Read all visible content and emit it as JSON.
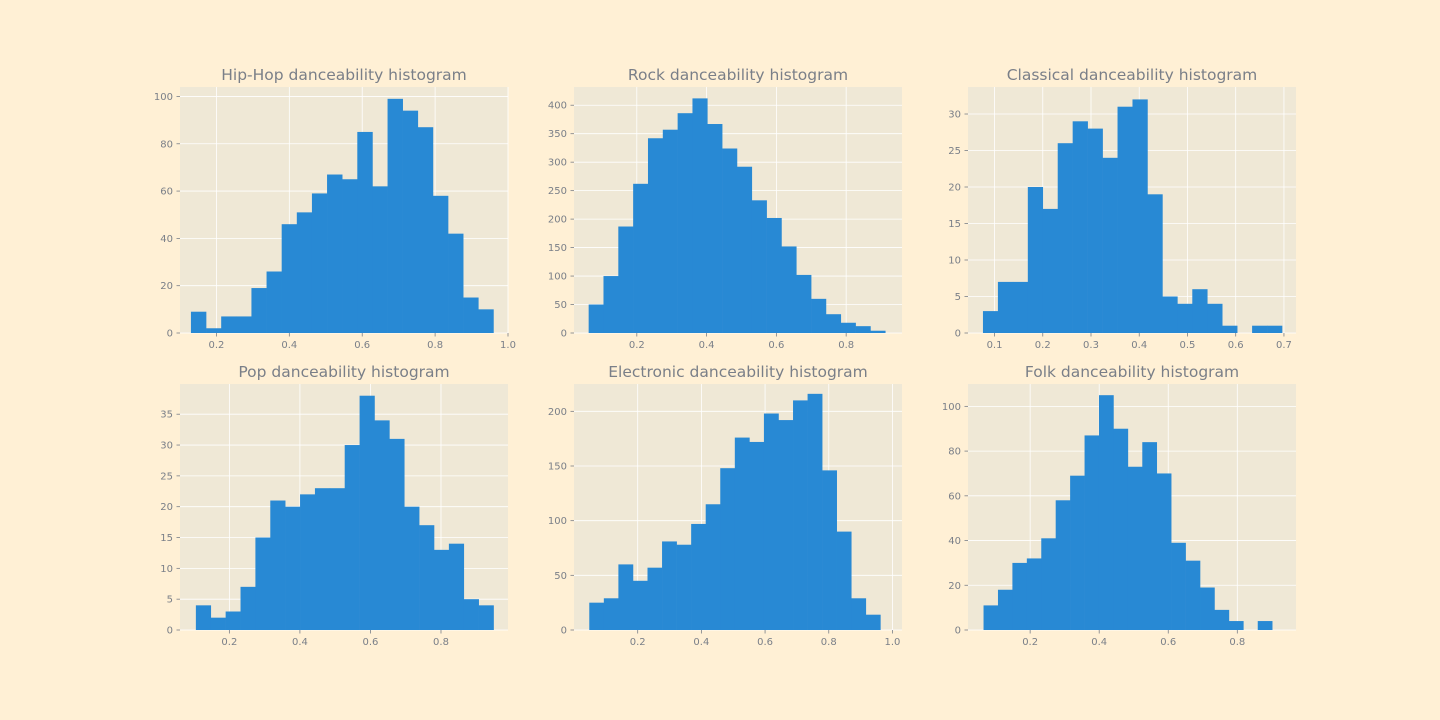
{
  "colors": {
    "background": "#fff0d5",
    "plot_background": "#efe8d6",
    "bar": "#2889d4",
    "text": "#7a7f88",
    "grid": "#ffffff"
  },
  "chart_data": [
    {
      "type": "bar",
      "title": "Hip-Hop danceability histogram",
      "grid": true,
      "xlim": [
        0.1,
        1.0
      ],
      "ylim": [
        0,
        104
      ],
      "xticks": [
        "0.2",
        "0.4",
        "0.6",
        "0.8",
        "1.0"
      ],
      "yticks": [
        "0",
        "20",
        "40",
        "60",
        "80",
        "100"
      ],
      "bin_start": 0.13,
      "bin_width": 0.0415,
      "values": [
        9,
        2,
        7,
        7,
        19,
        26,
        46,
        51,
        59,
        67,
        65,
        85,
        62,
        99,
        94,
        87,
        58,
        42,
        15,
        10
      ]
    },
    {
      "type": "bar",
      "title": "Rock danceability histogram",
      "grid": true,
      "xlim": [
        0.02,
        0.96
      ],
      "ylim": [
        0,
        432
      ],
      "xticks": [
        "0.2",
        "0.4",
        "0.6",
        "0.8"
      ],
      "yticks": [
        "0",
        "50",
        "100",
        "150",
        "200",
        "250",
        "300",
        "350",
        "400"
      ],
      "bin_start": 0.062,
      "bin_width": 0.0425,
      "values": [
        50,
        100,
        187,
        262,
        342,
        357,
        386,
        412,
        367,
        324,
        292,
        233,
        202,
        152,
        102,
        60,
        33,
        18,
        12,
        4
      ]
    },
    {
      "type": "bar",
      "title": "Classical danceability histogram",
      "grid": true,
      "xlim": [
        0.045,
        0.725
      ],
      "ylim": [
        0,
        33.7
      ],
      "xticks": [
        "0.1",
        "0.2",
        "0.3",
        "0.4",
        "0.5",
        "0.6",
        "0.7"
      ],
      "yticks": [
        "0",
        "5",
        "10",
        "15",
        "20",
        "25",
        "30"
      ],
      "bin_start": 0.076,
      "bin_width": 0.031,
      "values": [
        3,
        7,
        7,
        20,
        17,
        26,
        29,
        28,
        24,
        31,
        32,
        19,
        5,
        4,
        6,
        4,
        1,
        0,
        1,
        1
      ]
    },
    {
      "type": "bar",
      "title": "Pop danceability histogram",
      "grid": true,
      "xlim": [
        0.06,
        0.99
      ],
      "ylim": [
        0,
        39.9
      ],
      "xticks": [
        "0.2",
        "0.4",
        "0.6",
        "0.8"
      ],
      "yticks": [
        "0",
        "5",
        "10",
        "15",
        "20",
        "25",
        "30",
        "35"
      ],
      "bin_start": 0.105,
      "bin_width": 0.0422,
      "values": [
        4,
        2,
        3,
        7,
        15,
        21,
        20,
        22,
        23,
        23,
        30,
        38,
        34,
        31,
        20,
        17,
        13,
        14,
        5,
        4
      ]
    },
    {
      "type": "bar",
      "title": "Electronic danceability histogram",
      "grid": true,
      "xlim": [
        0.0,
        1.03
      ],
      "ylim": [
        0,
        225
      ],
      "xticks": [
        "0.2",
        "0.4",
        "0.6",
        "0.8",
        "1.0"
      ],
      "yticks": [
        "0",
        "50",
        "100",
        "150",
        "200"
      ],
      "bin_start": 0.048,
      "bin_width": 0.0457,
      "values": [
        25,
        29,
        60,
        45,
        57,
        81,
        78,
        97,
        115,
        148,
        176,
        172,
        198,
        192,
        210,
        216,
        146,
        90,
        29,
        14
      ]
    },
    {
      "type": "bar",
      "title": "Folk danceability histogram",
      "grid": true,
      "xlim": [
        0.02,
        0.97
      ],
      "ylim": [
        0,
        110
      ],
      "xticks": [
        "0.2",
        "0.4",
        "0.6",
        "0.8"
      ],
      "yticks": [
        "0",
        "20",
        "40",
        "60",
        "80",
        "100"
      ],
      "bin_start": 0.065,
      "bin_width": 0.0418,
      "values": [
        11,
        18,
        30,
        32,
        41,
        58,
        69,
        87,
        105,
        90,
        73,
        84,
        70,
        39,
        31,
        19,
        9,
        4,
        0,
        4
      ]
    }
  ]
}
